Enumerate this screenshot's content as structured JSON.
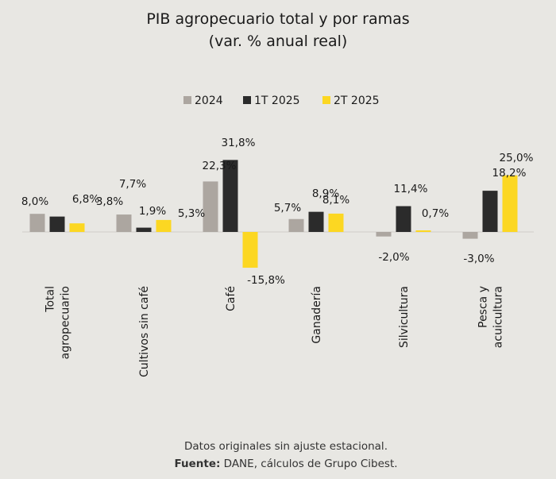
{
  "chart_data": {
    "type": "bar",
    "title": "PIB agropecuario total y por ramas",
    "subtitle": "(var. % anual real)",
    "categories": [
      [
        "Total",
        "agropecuario"
      ],
      [
        "Cultivos sin café"
      ],
      [
        "Café"
      ],
      [
        "Ganadería"
      ],
      [
        "Silvicultura"
      ],
      [
        "Pesca y",
        "acuicultura"
      ]
    ],
    "series": [
      {
        "name": "2024",
        "color": "#aca6a0",
        "values": [
          8.0,
          7.7,
          22.3,
          5.7,
          -2.0,
          -3.0
        ],
        "labels": [
          "8,0%",
          "7,7%",
          "22,3%",
          "5,7%",
          "-2,0%",
          "-3,0%"
        ]
      },
      {
        "name": "1T 2025",
        "color": "#2b2b2b",
        "values": [
          6.8,
          1.9,
          31.8,
          8.9,
          11.4,
          18.2
        ],
        "labels": [
          "6,8%",
          "1,9%",
          "31,8%",
          "8,9%",
          "11,4%",
          "18,2%"
        ]
      },
      {
        "name": "2T 2025",
        "color": "#fcd722",
        "values": [
          3.8,
          5.3,
          -15.8,
          8.1,
          0.7,
          25.0
        ],
        "labels": [
          "3,8%",
          "5,3%",
          "-15,8%",
          "8,1%",
          "0,7%",
          "25,0%"
        ]
      }
    ],
    "grid": false,
    "legend_position": "top"
  },
  "footer": {
    "note": "Datos originales sin ajuste estacional.",
    "source_label": "Fuente:",
    "source_text": " DANE, cálculos de Grupo Cibest."
  }
}
